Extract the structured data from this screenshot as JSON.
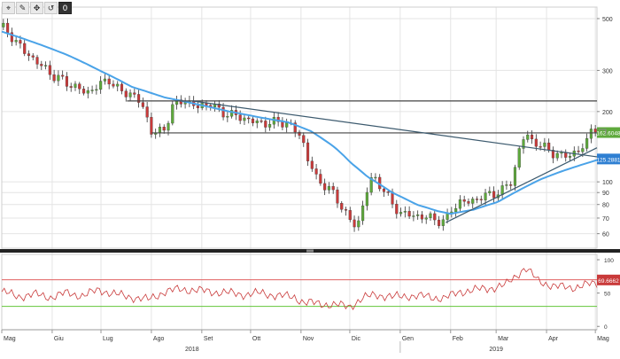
{
  "toolbar": {
    "icons": [
      "crosshair-icon",
      "pencil-icon",
      "move-icon",
      "reset-icon"
    ],
    "glyphs": [
      "⌖",
      "✎",
      "✥",
      "↺"
    ],
    "reset_badge": "0"
  },
  "chart_data": [
    {
      "type": "candlestick",
      "scale": "log",
      "ylim": [
        52,
        560
      ],
      "y_ticks": [
        {
          "v": 500,
          "label": "500"
        },
        {
          "v": 300,
          "label": "300"
        },
        {
          "v": 200,
          "label": "200"
        },
        {
          "v": 100,
          "label": "100"
        },
        {
          "v": 90,
          "label": "90"
        },
        {
          "v": 80,
          "label": "80"
        },
        {
          "v": 70,
          "label": "70"
        },
        {
          "v": 60,
          "label": "60"
        }
      ],
      "x_months": [
        {
          "label": "Mag",
          "d": 0
        },
        {
          "label": "Giu",
          "d": 31
        },
        {
          "label": "Lug",
          "d": 61
        },
        {
          "label": "Ago",
          "d": 92
        },
        {
          "label": "Set",
          "d": 123
        },
        {
          "label": "Ott",
          "d": 153
        },
        {
          "label": "Nov",
          "d": 184
        },
        {
          "label": "Dic",
          "d": 214
        },
        {
          "label": "Gen",
          "d": 245
        },
        {
          "label": "Feb",
          "d": 276
        },
        {
          "label": "Mar",
          "d": 304
        },
        {
          "label": "Apr",
          "d": 335
        },
        {
          "label": "Mag",
          "d": 365
        }
      ],
      "x_years": [
        {
          "label": "2018",
          "d": 117
        },
        {
          "label": "2019",
          "d": 304
        }
      ],
      "price_anchors": [
        [
          0,
          460
        ],
        [
          6,
          420
        ],
        [
          14,
          360
        ],
        [
          22,
          325
        ],
        [
          30,
          290
        ],
        [
          38,
          270
        ],
        [
          45,
          255
        ],
        [
          52,
          240
        ],
        [
          60,
          260
        ],
        [
          66,
          275
        ],
        [
          72,
          245
        ],
        [
          80,
          238
        ],
        [
          86,
          215
        ],
        [
          92,
          165
        ],
        [
          96,
          162
        ],
        [
          100,
          168
        ],
        [
          105,
          210
        ],
        [
          112,
          225
        ],
        [
          120,
          208
        ],
        [
          128,
          218
        ],
        [
          134,
          200
        ],
        [
          140,
          195
        ],
        [
          148,
          188
        ],
        [
          156,
          180
        ],
        [
          164,
          178
        ],
        [
          172,
          182
        ],
        [
          178,
          172
        ],
        [
          184,
          158
        ],
        [
          188,
          125
        ],
        [
          194,
          102
        ],
        [
          200,
          95
        ],
        [
          206,
          85
        ],
        [
          212,
          72
        ],
        [
          216,
          65
        ],
        [
          220,
          68
        ],
        [
          224,
          90
        ],
        [
          228,
          105
        ],
        [
          234,
          95
        ],
        [
          240,
          80
        ],
        [
          246,
          73
        ],
        [
          252,
          72
        ],
        [
          258,
          71
        ],
        [
          264,
          70
        ],
        [
          270,
          68
        ],
        [
          273,
          67
        ],
        [
          276,
          76
        ],
        [
          282,
          82
        ],
        [
          288,
          82
        ],
        [
          294,
          86
        ],
        [
          300,
          88
        ],
        [
          308,
          92
        ],
        [
          314,
          102
        ],
        [
          318,
          135
        ],
        [
          322,
          162
        ],
        [
          326,
          150
        ],
        [
          332,
          142
        ],
        [
          338,
          135
        ],
        [
          344,
          128
        ],
        [
          350,
          132
        ],
        [
          356,
          136
        ],
        [
          360,
          150
        ],
        [
          363,
          175
        ],
        [
          366,
          168
        ]
      ],
      "ma_anchors": [
        [
          0,
          440
        ],
        [
          20,
          395
        ],
        [
          40,
          350
        ],
        [
          60,
          300
        ],
        [
          80,
          255
        ],
        [
          100,
          230
        ],
        [
          120,
          215
        ],
        [
          140,
          200
        ],
        [
          160,
          188
        ],
        [
          176,
          180
        ],
        [
          190,
          165
        ],
        [
          205,
          140
        ],
        [
          215,
          120
        ],
        [
          225,
          105
        ],
        [
          240,
          90
        ],
        [
          255,
          80
        ],
        [
          268,
          75
        ],
        [
          276,
          73
        ],
        [
          290,
          76
        ],
        [
          305,
          82
        ],
        [
          318,
          92
        ],
        [
          332,
          103
        ],
        [
          346,
          112
        ],
        [
          356,
          118
        ],
        [
          366,
          124
        ]
      ],
      "trendlines": [
        {
          "name": "resistance-line-upper",
          "from": [
            77,
            222
          ],
          "to": [
            366,
            222
          ],
          "color": "#444444"
        },
        {
          "name": "resistance-line-lower",
          "from": [
            92,
            162
          ],
          "to": [
            366,
            162
          ],
          "color": "#444444"
        },
        {
          "name": "downtrend-line",
          "from": [
            117,
            222
          ],
          "to": [
            366,
            128
          ],
          "color": "#3c5a6e"
        },
        {
          "name": "uptrend-line",
          "from": [
            273,
            67
          ],
          "to": [
            366,
            140
          ],
          "color": "#3c5a6e"
        }
      ],
      "last_price": {
        "value": 162.6048,
        "label": "162.6048",
        "color": "#5ea93c"
      },
      "ma_last": {
        "value": 125.2881,
        "label": "125.2881",
        "color": "#2e7fd2"
      },
      "colors": {
        "up": "#5ea93c",
        "down": "#c93a3a",
        "ma": "#4aa3e8",
        "grid": "#e4e4e4"
      }
    },
    {
      "type": "line",
      "indicator": "oscillator",
      "ylim": [
        -5,
        108
      ],
      "y_ticks": [
        {
          "v": 100,
          "label": "100"
        },
        {
          "v": 50,
          "label": "50"
        },
        {
          "v": 0,
          "label": "0"
        }
      ],
      "hlines": [
        {
          "v": 70,
          "color": "#e06060"
        },
        {
          "v": 30,
          "color": "#63c63a"
        }
      ],
      "anchors": [
        [
          0,
          52
        ],
        [
          10,
          45
        ],
        [
          20,
          48
        ],
        [
          30,
          44
        ],
        [
          40,
          50
        ],
        [
          50,
          46
        ],
        [
          60,
          55
        ],
        [
          70,
          48
        ],
        [
          80,
          44
        ],
        [
          90,
          40
        ],
        [
          100,
          52
        ],
        [
          110,
          56
        ],
        [
          120,
          54
        ],
        [
          130,
          52
        ],
        [
          140,
          50
        ],
        [
          150,
          48
        ],
        [
          160,
          50
        ],
        [
          170,
          46
        ],
        [
          180,
          44
        ],
        [
          186,
          36
        ],
        [
          196,
          34
        ],
        [
          206,
          32
        ],
        [
          214,
          30
        ],
        [
          222,
          42
        ],
        [
          230,
          48
        ],
        [
          240,
          44
        ],
        [
          250,
          46
        ],
        [
          260,
          45
        ],
        [
          272,
          42
        ],
        [
          282,
          52
        ],
        [
          292,
          55
        ],
        [
          302,
          58
        ],
        [
          310,
          62
        ],
        [
          318,
          80
        ],
        [
          322,
          88
        ],
        [
          330,
          68
        ],
        [
          340,
          60
        ],
        [
          350,
          58
        ],
        [
          358,
          62
        ],
        [
          366,
          64
        ]
      ],
      "last_value": {
        "value": 69.6662,
        "label": "69.6662",
        "color": "#c93a3a"
      },
      "color": "#c93a3a"
    }
  ]
}
